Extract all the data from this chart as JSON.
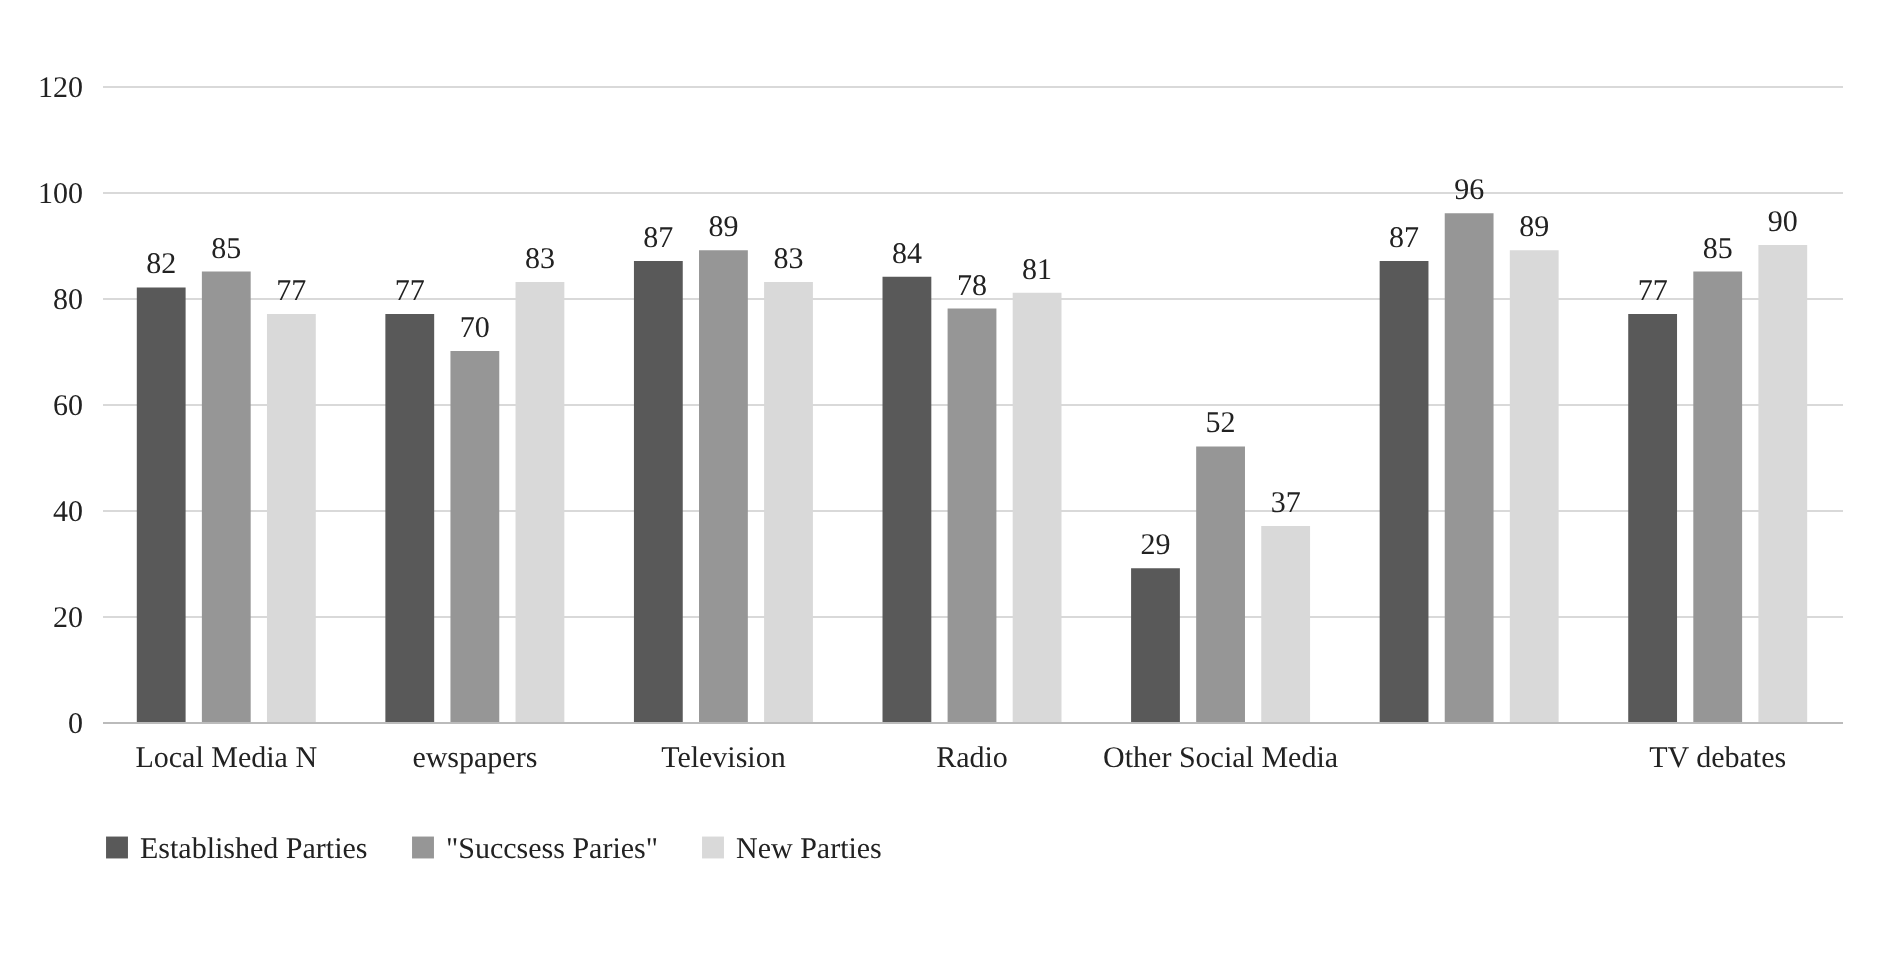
{
  "chart_data": {
    "type": "bar",
    "categories": [
      "Local Media N",
      "ewspapers",
      "Television",
      "Radio",
      "Other Social Media",
      null,
      "TV debates"
    ],
    "series": [
      {
        "name": "Established Parties",
        "color": "#595959",
        "values": [
          82,
          77,
          87,
          84,
          29,
          87,
          77
        ]
      },
      {
        "name": "\"Succsess Paries\"",
        "color": "#969696",
        "values": [
          85,
          70,
          89,
          78,
          52,
          96,
          85
        ]
      },
      {
        "name": "New Parties",
        "color": "#d9d9d9",
        "values": [
          77,
          83,
          83,
          81,
          37,
          89,
          90
        ]
      }
    ],
    "ylim": [
      0,
      120
    ],
    "yticks": [
      0,
      20,
      40,
      60,
      80,
      100,
      120
    ],
    "grid": "y",
    "legend": "bottom",
    "data_labels": true
  }
}
